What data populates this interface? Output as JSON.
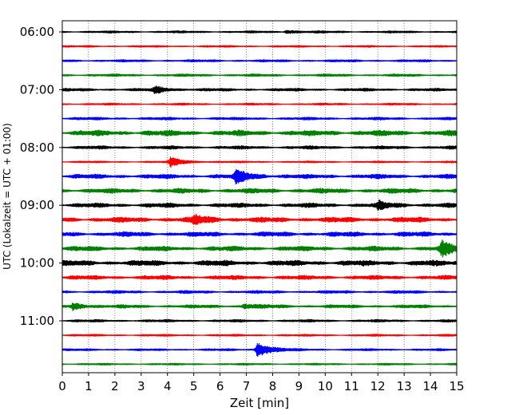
{
  "chart_data": {
    "type": "line",
    "subtype": "helicorder",
    "xlabel": "Zeit  [min]",
    "ylabel": "UTC (Lokalzeit = UTC + 01:00)",
    "xlim": [
      0,
      15
    ],
    "x_ticks": [
      "0",
      "1",
      "2",
      "3",
      "4",
      "5",
      "6",
      "7",
      "8",
      "9",
      "10",
      "11",
      "12",
      "13",
      "14",
      "15"
    ],
    "y_tick_labels": [
      "06:00",
      "07:00",
      "08:00",
      "09:00",
      "10:00",
      "11:00"
    ],
    "grid": "vertical dotted at each minute",
    "colors": [
      "#000000",
      "#ff0000",
      "#0000ff",
      "#008000"
    ],
    "traces": [
      {
        "start": "06:00",
        "color": "#000000",
        "noise": 1.2,
        "events": [
          {
            "t": 8.5,
            "amp": 2
          }
        ]
      },
      {
        "start": "06:15",
        "color": "#ff0000",
        "noise": 1.0,
        "events": []
      },
      {
        "start": "06:30",
        "color": "#0000ff",
        "noise": 1.3,
        "events": []
      },
      {
        "start": "06:45",
        "color": "#008000",
        "noise": 1.4,
        "events": []
      },
      {
        "start": "07:00",
        "color": "#000000",
        "noise": 1.6,
        "events": [
          {
            "t": 3.5,
            "amp": 4
          }
        ]
      },
      {
        "start": "07:15",
        "color": "#ff0000",
        "noise": 1.1,
        "events": []
      },
      {
        "start": "07:30",
        "color": "#0000ff",
        "noise": 1.5,
        "events": []
      },
      {
        "start": "07:45",
        "color": "#008000",
        "noise": 3.0,
        "events": []
      },
      {
        "start": "08:00",
        "color": "#000000",
        "noise": 1.8,
        "events": []
      },
      {
        "start": "08:15",
        "color": "#ff0000",
        "noise": 1.0,
        "events": [
          {
            "t": 4.1,
            "amp": 6
          }
        ]
      },
      {
        "start": "08:30",
        "color": "#0000ff",
        "noise": 2.4,
        "events": [
          {
            "t": 6.6,
            "amp": 8
          }
        ]
      },
      {
        "start": "08:45",
        "color": "#008000",
        "noise": 2.6,
        "events": []
      },
      {
        "start": "09:00",
        "color": "#000000",
        "noise": 2.4,
        "events": [
          {
            "t": 12.0,
            "amp": 4
          }
        ]
      },
      {
        "start": "09:15",
        "color": "#ff0000",
        "noise": 2.8,
        "events": [
          {
            "t": 5.0,
            "amp": 5
          }
        ]
      },
      {
        "start": "09:30",
        "color": "#0000ff",
        "noise": 2.6,
        "events": []
      },
      {
        "start": "09:45",
        "color": "#008000",
        "noise": 2.6,
        "events": [
          {
            "t": 14.4,
            "amp": 9
          }
        ]
      },
      {
        "start": "10:00",
        "color": "#000000",
        "noise": 3.0,
        "events": []
      },
      {
        "start": "10:15",
        "color": "#ff0000",
        "noise": 2.2,
        "events": []
      },
      {
        "start": "10:30",
        "color": "#0000ff",
        "noise": 1.6,
        "events": []
      },
      {
        "start": "10:45",
        "color": "#008000",
        "noise": 1.8,
        "events": [
          {
            "t": 0.4,
            "amp": 4
          },
          {
            "t": 6.9,
            "amp": 3
          }
        ]
      },
      {
        "start": "11:00",
        "color": "#000000",
        "noise": 1.4,
        "events": []
      },
      {
        "start": "11:15",
        "color": "#ff0000",
        "noise": 1.1,
        "events": []
      },
      {
        "start": "11:30",
        "color": "#0000ff",
        "noise": 1.2,
        "events": [
          {
            "t": 7.4,
            "amp": 10
          }
        ]
      },
      {
        "start": "11:45",
        "color": "#008000",
        "noise": 1.0,
        "events": []
      }
    ]
  }
}
